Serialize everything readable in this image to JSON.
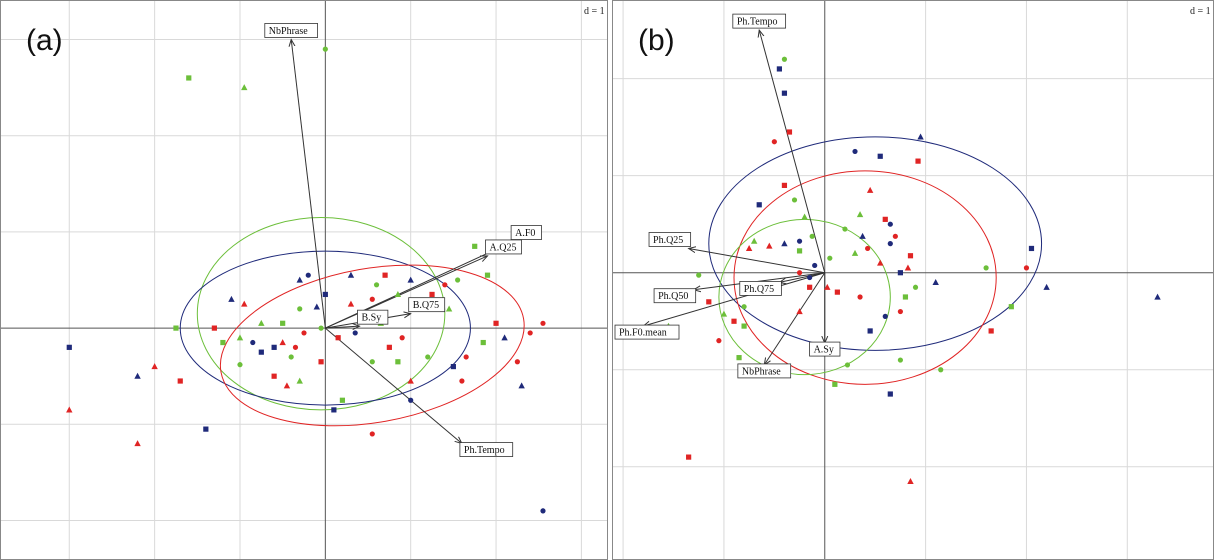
{
  "colors": {
    "blue": "#1f2a7a",
    "red": "#e02424",
    "green": "#6cbf3a"
  },
  "chart_data": [
    {
      "type": "scatter",
      "subtype": "biplot-with-ellipses",
      "panel_label": "(a)",
      "scale_label": "d = 1",
      "xlim": [
        -3.8,
        3.3
      ],
      "ylim": [
        -2.4,
        3.4
      ],
      "grid": true,
      "vectors": [
        {
          "label": "NbPhrase",
          "x": -0.4,
          "y": 3.0
        },
        {
          "label": "A.F0",
          "x": 2.2,
          "y": 0.9
        },
        {
          "label": "A.Q25",
          "x": 1.9,
          "y": 0.75
        },
        {
          "label": "B.Q75",
          "x": 1.0,
          "y": 0.15
        },
        {
          "label": "B.Sy",
          "x": 0.4,
          "y": 0.02
        },
        {
          "label": "Ph.Tempo",
          "x": 1.6,
          "y": -1.2
        }
      ],
      "ellipses": [
        {
          "color": "green",
          "cx": -0.05,
          "cy": 0.15,
          "rx": 1.45,
          "ry": 1.0,
          "angle": 0
        },
        {
          "color": "blue",
          "cx": 0.0,
          "cy": 0.0,
          "rx": 1.7,
          "ry": 0.8,
          "angle": 0
        },
        {
          "color": "red",
          "cx": 0.55,
          "cy": -0.18,
          "rx": 1.8,
          "ry": 0.8,
          "angle": -10
        }
      ],
      "points": [
        {
          "x": -1.6,
          "y": 2.6,
          "g": "green",
          "s": "square"
        },
        {
          "x": -0.95,
          "y": 2.5,
          "g": "green",
          "s": "triangle"
        },
        {
          "x": 0.0,
          "y": 2.9,
          "g": "green",
          "s": "circle"
        },
        {
          "x": -3.0,
          "y": -0.2,
          "g": "blue",
          "s": "square"
        },
        {
          "x": -3.0,
          "y": -0.85,
          "g": "red",
          "s": "triangle"
        },
        {
          "x": -2.0,
          "y": -0.4,
          "g": "red",
          "s": "triangle"
        },
        {
          "x": -2.2,
          "y": -0.5,
          "g": "blue",
          "s": "triangle"
        },
        {
          "x": -1.7,
          "y": -0.55,
          "g": "red",
          "s": "square"
        },
        {
          "x": -1.75,
          "y": 0.0,
          "g": "green",
          "s": "square"
        },
        {
          "x": -1.3,
          "y": 0.0,
          "g": "red",
          "s": "square"
        },
        {
          "x": -1.1,
          "y": 0.3,
          "g": "blue",
          "s": "triangle"
        },
        {
          "x": -0.95,
          "y": 0.25,
          "g": "red",
          "s": "triangle"
        },
        {
          "x": -1.0,
          "y": -0.1,
          "g": "green",
          "s": "triangle"
        },
        {
          "x": -1.2,
          "y": -0.15,
          "g": "green",
          "s": "square"
        },
        {
          "x": -1.0,
          "y": -0.38,
          "g": "green",
          "s": "circle"
        },
        {
          "x": -0.6,
          "y": -0.2,
          "g": "blue",
          "s": "square"
        },
        {
          "x": -0.5,
          "y": -0.15,
          "g": "red",
          "s": "triangle"
        },
        {
          "x": -0.4,
          "y": -0.3,
          "g": "green",
          "s": "circle"
        },
        {
          "x": -0.6,
          "y": -0.5,
          "g": "red",
          "s": "square"
        },
        {
          "x": -0.3,
          "y": -0.55,
          "g": "green",
          "s": "triangle"
        },
        {
          "x": -0.75,
          "y": -0.25,
          "g": "blue",
          "s": "square"
        },
        {
          "x": -0.5,
          "y": 0.05,
          "g": "green",
          "s": "square"
        },
        {
          "x": -0.3,
          "y": 0.2,
          "g": "green",
          "s": "circle"
        },
        {
          "x": -0.35,
          "y": -0.2,
          "g": "red",
          "s": "circle"
        },
        {
          "x": -0.1,
          "y": 0.22,
          "g": "blue",
          "s": "triangle"
        },
        {
          "x": 0.0,
          "y": 0.35,
          "g": "blue",
          "s": "square"
        },
        {
          "x": -0.3,
          "y": 0.5,
          "g": "blue",
          "s": "triangle"
        },
        {
          "x": -0.2,
          "y": 0.55,
          "g": "blue",
          "s": "circle"
        },
        {
          "x": -0.45,
          "y": -0.6,
          "g": "red",
          "s": "triangle"
        },
        {
          "x": -2.2,
          "y": -1.2,
          "g": "red",
          "s": "triangle"
        },
        {
          "x": -1.4,
          "y": -1.05,
          "g": "blue",
          "s": "square"
        },
        {
          "x": -0.05,
          "y": 0.0,
          "g": "green",
          "s": "circle"
        },
        {
          "x": 0.15,
          "y": -0.1,
          "g": "red",
          "s": "square"
        },
        {
          "x": 0.3,
          "y": 0.25,
          "g": "red",
          "s": "triangle"
        },
        {
          "x": 0.3,
          "y": 0.55,
          "g": "blue",
          "s": "triangle"
        },
        {
          "x": 0.35,
          "y": -0.05,
          "g": "blue",
          "s": "circle"
        },
        {
          "x": 0.45,
          "y": 0.15,
          "g": "red",
          "s": "square"
        },
        {
          "x": 0.55,
          "y": 0.3,
          "g": "red",
          "s": "circle"
        },
        {
          "x": 0.65,
          "y": 0.05,
          "g": "green",
          "s": "triangle"
        },
        {
          "x": 0.6,
          "y": 0.45,
          "g": "green",
          "s": "circle"
        },
        {
          "x": 0.7,
          "y": 0.55,
          "g": "red",
          "s": "square"
        },
        {
          "x": 0.85,
          "y": 0.35,
          "g": "green",
          "s": "triangle"
        },
        {
          "x": 0.75,
          "y": -0.2,
          "g": "red",
          "s": "square"
        },
        {
          "x": 0.85,
          "y": -0.35,
          "g": "green",
          "s": "square"
        },
        {
          "x": 0.9,
          "y": -0.1,
          "g": "red",
          "s": "circle"
        },
        {
          "x": 1.0,
          "y": 0.5,
          "g": "blue",
          "s": "triangle"
        },
        {
          "x": 1.0,
          "y": -0.55,
          "g": "red",
          "s": "triangle"
        },
        {
          "x": 1.2,
          "y": -0.3,
          "g": "green",
          "s": "circle"
        },
        {
          "x": 1.25,
          "y": 0.35,
          "g": "red",
          "s": "square"
        },
        {
          "x": 1.35,
          "y": 0.25,
          "g": "red",
          "s": "triangle"
        },
        {
          "x": 1.45,
          "y": 0.2,
          "g": "green",
          "s": "triangle"
        },
        {
          "x": 1.55,
          "y": 0.5,
          "g": "green",
          "s": "circle"
        },
        {
          "x": 1.5,
          "y": -0.4,
          "g": "blue",
          "s": "square"
        },
        {
          "x": 1.65,
          "y": -0.3,
          "g": "red",
          "s": "circle"
        },
        {
          "x": 1.6,
          "y": -0.55,
          "g": "red",
          "s": "circle"
        },
        {
          "x": 1.85,
          "y": -0.15,
          "g": "green",
          "s": "square"
        },
        {
          "x": 1.0,
          "y": -0.75,
          "g": "blue",
          "s": "circle"
        },
        {
          "x": 0.2,
          "y": -0.75,
          "g": "green",
          "s": "square"
        },
        {
          "x": 0.1,
          "y": -0.85,
          "g": "blue",
          "s": "square"
        },
        {
          "x": 0.55,
          "y": -1.1,
          "g": "red",
          "s": "circle"
        },
        {
          "x": 1.9,
          "y": 0.55,
          "g": "green",
          "s": "square"
        },
        {
          "x": 1.75,
          "y": 0.85,
          "g": "green",
          "s": "square"
        },
        {
          "x": 1.4,
          "y": 0.45,
          "g": "red",
          "s": "circle"
        },
        {
          "x": 2.1,
          "y": -0.1,
          "g": "blue",
          "s": "triangle"
        },
        {
          "x": 2.0,
          "y": 0.05,
          "g": "red",
          "s": "square"
        },
        {
          "x": 2.4,
          "y": -0.05,
          "g": "red",
          "s": "circle"
        },
        {
          "x": 2.25,
          "y": -0.35,
          "g": "red",
          "s": "circle"
        },
        {
          "x": 2.3,
          "y": -0.6,
          "g": "blue",
          "s": "triangle"
        },
        {
          "x": 2.55,
          "y": 0.05,
          "g": "red",
          "s": "circle"
        },
        {
          "x": 2.55,
          "y": -1.9,
          "g": "blue",
          "s": "circle"
        },
        {
          "x": -0.85,
          "y": -0.15,
          "g": "blue",
          "s": "circle"
        },
        {
          "x": -0.75,
          "y": 0.05,
          "g": "green",
          "s": "triangle"
        },
        {
          "x": -0.25,
          "y": -0.05,
          "g": "red",
          "s": "circle"
        },
        {
          "x": 0.55,
          "y": -0.35,
          "g": "green",
          "s": "circle"
        },
        {
          "x": -0.05,
          "y": -0.35,
          "g": "red",
          "s": "square"
        }
      ]
    },
    {
      "type": "scatter",
      "subtype": "biplot-with-ellipses",
      "panel_label": "(b)",
      "scale_label": "d = 1",
      "xlim": [
        -4.2,
        7.7
      ],
      "ylim": [
        -5.9,
        5.6
      ],
      "grid": true,
      "vectors": [
        {
          "label": "Ph.Tempo",
          "x": -1.3,
          "y": 5.0
        },
        {
          "label": "Ph.Q25",
          "x": -2.7,
          "y": 0.5
        },
        {
          "label": "Ph.Q75",
          "x": -0.9,
          "y": -0.2
        },
        {
          "label": "Ph.Q50",
          "x": -2.6,
          "y": -0.35
        },
        {
          "label": "Ph.F0.mean",
          "x": -3.6,
          "y": -1.1
        },
        {
          "label": "A.Sy",
          "x": 0.0,
          "y": -1.45
        },
        {
          "label": "NbPhrase",
          "x": -1.2,
          "y": -1.9
        }
      ],
      "ellipses": [
        {
          "color": "blue",
          "cx": 1.0,
          "cy": 0.6,
          "rx": 3.3,
          "ry": 2.2,
          "angle": 0
        },
        {
          "color": "red",
          "cx": 0.8,
          "cy": -0.1,
          "rx": 2.6,
          "ry": 2.2,
          "angle": 0
        },
        {
          "color": "green",
          "cx": -0.4,
          "cy": -0.5,
          "rx": 1.7,
          "ry": 1.6,
          "angle": 0
        }
      ],
      "points": [
        {
          "x": -2.7,
          "y": -3.8,
          "g": "red",
          "s": "square"
        },
        {
          "x": -2.5,
          "y": -0.05,
          "g": "green",
          "s": "circle"
        },
        {
          "x": -3.1,
          "y": -1.1,
          "g": "green",
          "s": "triangle"
        },
        {
          "x": -3.3,
          "y": 0.65,
          "g": "green",
          "s": "circle"
        },
        {
          "x": -2.9,
          "y": -0.4,
          "g": "blue",
          "s": "circle"
        },
        {
          "x": -2.3,
          "y": -0.6,
          "g": "red",
          "s": "square"
        },
        {
          "x": -2.0,
          "y": -0.85,
          "g": "green",
          "s": "triangle"
        },
        {
          "x": -1.6,
          "y": -0.7,
          "g": "green",
          "s": "circle"
        },
        {
          "x": -1.8,
          "y": -1.0,
          "g": "red",
          "s": "square"
        },
        {
          "x": -1.6,
          "y": -1.1,
          "g": "green",
          "s": "square"
        },
        {
          "x": -1.7,
          "y": -1.75,
          "g": "green",
          "s": "square"
        },
        {
          "x": -1.5,
          "y": 0.5,
          "g": "red",
          "s": "triangle"
        },
        {
          "x": -1.4,
          "y": 0.65,
          "g": "green",
          "s": "triangle"
        },
        {
          "x": -1.1,
          "y": 0.55,
          "g": "red",
          "s": "triangle"
        },
        {
          "x": -0.8,
          "y": 0.6,
          "g": "blue",
          "s": "triangle"
        },
        {
          "x": -0.5,
          "y": 0.65,
          "g": "blue",
          "s": "circle"
        },
        {
          "x": -0.5,
          "y": 0.45,
          "g": "green",
          "s": "square"
        },
        {
          "x": -0.5,
          "y": 0.0,
          "g": "red",
          "s": "circle"
        },
        {
          "x": -0.2,
          "y": 0.15,
          "g": "blue",
          "s": "circle"
        },
        {
          "x": -0.3,
          "y": -0.3,
          "g": "red",
          "s": "square"
        },
        {
          "x": -0.6,
          "y": 1.5,
          "g": "green",
          "s": "circle"
        },
        {
          "x": -0.4,
          "y": 1.15,
          "g": "green",
          "s": "triangle"
        },
        {
          "x": -0.25,
          "y": 0.75,
          "g": "green",
          "s": "circle"
        },
        {
          "x": 0.1,
          "y": 0.3,
          "g": "green",
          "s": "circle"
        },
        {
          "x": 0.05,
          "y": -0.3,
          "g": "red",
          "s": "triangle"
        },
        {
          "x": 0.25,
          "y": -0.4,
          "g": "red",
          "s": "square"
        },
        {
          "x": -1.0,
          "y": 2.7,
          "g": "red",
          "s": "circle"
        },
        {
          "x": -0.8,
          "y": 1.8,
          "g": "red",
          "s": "square"
        },
        {
          "x": -1.3,
          "y": 1.4,
          "g": "blue",
          "s": "square"
        },
        {
          "x": -0.7,
          "y": 2.9,
          "g": "red",
          "s": "square"
        },
        {
          "x": -0.9,
          "y": 4.2,
          "g": "blue",
          "s": "square"
        },
        {
          "x": -0.8,
          "y": 3.7,
          "g": "blue",
          "s": "square"
        },
        {
          "x": -0.8,
          "y": 4.4,
          "g": "green",
          "s": "circle"
        },
        {
          "x": 0.4,
          "y": 0.9,
          "g": "green",
          "s": "circle"
        },
        {
          "x": 0.6,
          "y": 0.4,
          "g": "green",
          "s": "triangle"
        },
        {
          "x": 0.75,
          "y": 0.75,
          "g": "blue",
          "s": "triangle"
        },
        {
          "x": 0.85,
          "y": 0.5,
          "g": "red",
          "s": "circle"
        },
        {
          "x": 0.7,
          "y": 1.2,
          "g": "green",
          "s": "triangle"
        },
        {
          "x": 1.1,
          "y": 0.2,
          "g": "red",
          "s": "triangle"
        },
        {
          "x": 1.3,
          "y": 0.6,
          "g": "blue",
          "s": "circle"
        },
        {
          "x": 1.4,
          "y": 0.75,
          "g": "red",
          "s": "circle"
        },
        {
          "x": 1.5,
          "y": 0.0,
          "g": "blue",
          "s": "square"
        },
        {
          "x": 1.65,
          "y": 0.1,
          "g": "red",
          "s": "triangle"
        },
        {
          "x": 0.9,
          "y": 1.7,
          "g": "red",
          "s": "triangle"
        },
        {
          "x": 0.6,
          "y": 2.5,
          "g": "blue",
          "s": "circle"
        },
        {
          "x": 1.1,
          "y": 2.4,
          "g": "blue",
          "s": "square"
        },
        {
          "x": 1.2,
          "y": 1.1,
          "g": "red",
          "s": "square"
        },
        {
          "x": 1.3,
          "y": 1.0,
          "g": "blue",
          "s": "circle"
        },
        {
          "x": 1.7,
          "y": 0.35,
          "g": "red",
          "s": "square"
        },
        {
          "x": 1.6,
          "y": -0.5,
          "g": "green",
          "s": "square"
        },
        {
          "x": 1.8,
          "y": -0.3,
          "g": "green",
          "s": "circle"
        },
        {
          "x": 1.2,
          "y": -0.9,
          "g": "blue",
          "s": "circle"
        },
        {
          "x": 1.5,
          "y": -0.8,
          "g": "red",
          "s": "circle"
        },
        {
          "x": 1.5,
          "y": -1.8,
          "g": "green",
          "s": "circle"
        },
        {
          "x": 0.9,
          "y": -1.2,
          "g": "blue",
          "s": "square"
        },
        {
          "x": 0.7,
          "y": -0.5,
          "g": "red",
          "s": "circle"
        },
        {
          "x": 0.2,
          "y": -2.3,
          "g": "green",
          "s": "square"
        },
        {
          "x": 0.45,
          "y": -1.9,
          "g": "green",
          "s": "circle"
        },
        {
          "x": 2.2,
          "y": -0.2,
          "g": "blue",
          "s": "triangle"
        },
        {
          "x": 1.85,
          "y": 2.3,
          "g": "red",
          "s": "square"
        },
        {
          "x": 1.9,
          "y": 2.8,
          "g": "blue",
          "s": "triangle"
        },
        {
          "x": 2.3,
          "y": -2.0,
          "g": "green",
          "s": "circle"
        },
        {
          "x": 3.2,
          "y": 0.1,
          "g": "green",
          "s": "circle"
        },
        {
          "x": 3.3,
          "y": -1.2,
          "g": "red",
          "s": "square"
        },
        {
          "x": 3.7,
          "y": -0.7,
          "g": "green",
          "s": "square"
        },
        {
          "x": 4.1,
          "y": 0.5,
          "g": "blue",
          "s": "square"
        },
        {
          "x": 4.0,
          "y": 0.1,
          "g": "red",
          "s": "circle"
        },
        {
          "x": 4.4,
          "y": -0.3,
          "g": "blue",
          "s": "triangle"
        },
        {
          "x": 6.6,
          "y": -0.5,
          "g": "blue",
          "s": "triangle"
        },
        {
          "x": 1.3,
          "y": -2.5,
          "g": "blue",
          "s": "square"
        },
        {
          "x": 1.7,
          "y": -4.3,
          "g": "red",
          "s": "triangle"
        },
        {
          "x": -0.3,
          "y": -0.1,
          "g": "blue",
          "s": "circle"
        },
        {
          "x": -0.5,
          "y": -0.8,
          "g": "red",
          "s": "triangle"
        },
        {
          "x": -1.2,
          "y": -0.3,
          "g": "red",
          "s": "triangle"
        },
        {
          "x": -2.1,
          "y": -1.4,
          "g": "red",
          "s": "circle"
        }
      ]
    }
  ]
}
